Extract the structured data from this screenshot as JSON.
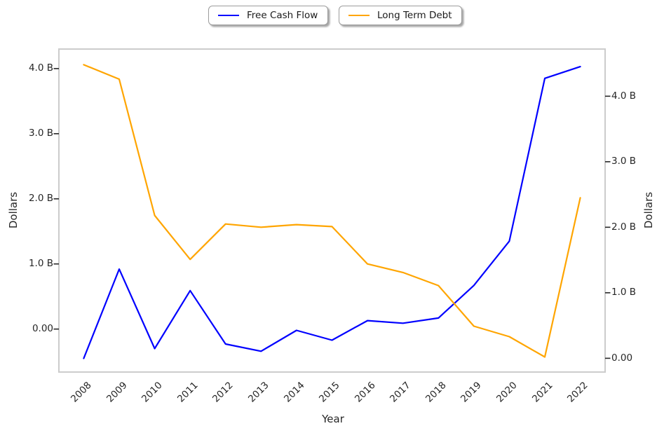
{
  "figure": {
    "background": "#ffffff"
  },
  "legend": {
    "position": "top-center",
    "items": [
      {
        "label": "Free Cash Flow",
        "color": "#0000ff"
      },
      {
        "label": "Long Term Debt",
        "color": "#ffa500"
      }
    ]
  },
  "chart_data": {
    "type": "line",
    "title": "",
    "xlabel": "Year",
    "categories": [
      2008,
      2009,
      2010,
      2011,
      2012,
      2013,
      2014,
      2015,
      2016,
      2017,
      2018,
      2019,
      2020,
      2021,
      2022
    ],
    "series": [
      {
        "name": "Free Cash Flow",
        "axis": "left",
        "color": "#0000ff",
        "values": [
          -0.45,
          0.92,
          -0.3,
          0.59,
          -0.23,
          -0.34,
          -0.02,
          -0.17,
          0.13,
          0.09,
          0.17,
          0.67,
          1.35,
          3.85,
          4.03
        ]
      },
      {
        "name": "Long Term Debt",
        "axis": "right",
        "color": "#ffa500",
        "values": [
          4.48,
          4.26,
          2.18,
          1.51,
          2.05,
          2.0,
          2.04,
          2.01,
          1.44,
          1.31,
          1.11,
          0.49,
          0.33,
          0.02,
          2.45
        ]
      }
    ],
    "left_axis": {
      "label": "Dollars",
      "tick_values": [
        0,
        1,
        2,
        3,
        4
      ],
      "tick_labels": [
        "0.00",
        "1.0 B",
        "2.0 B",
        "3.0 B",
        "4.0 B"
      ],
      "ylim": [
        -0.66,
        4.3
      ]
    },
    "right_axis": {
      "label": "Dollars",
      "tick_values": [
        0,
        1,
        2,
        3,
        4
      ],
      "tick_labels": [
        "0.00",
        "1.0 B",
        "2.0 B",
        "3.0 B",
        "4.0 B"
      ],
      "ylim": [
        -0.21,
        4.72
      ]
    },
    "xlim": [
      2007.3,
      2022.7
    ],
    "grid": false,
    "legend_position": "top-center"
  },
  "styles": {
    "spine_color": "#cccccc",
    "tick_color": "#262626",
    "text_color": "#262626",
    "line_width": 2.2
  }
}
